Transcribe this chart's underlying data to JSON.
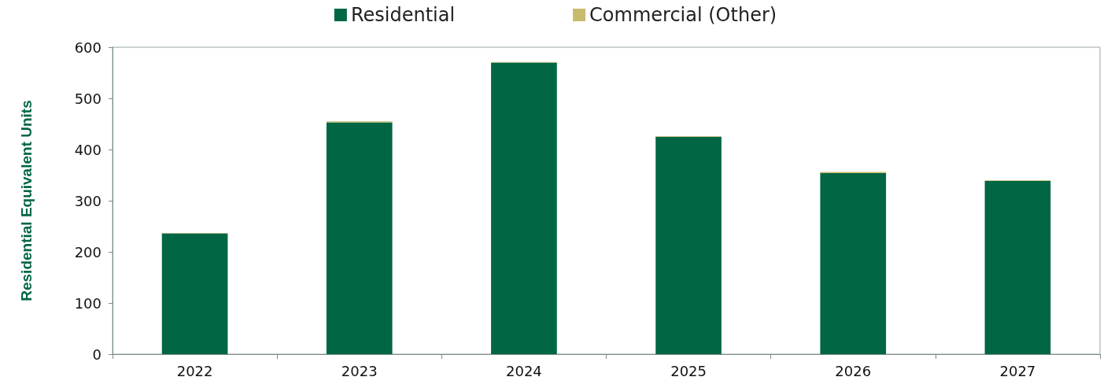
{
  "chart_data": {
    "type": "bar",
    "stacked": true,
    "ylabel": "Residential Equivalent Units",
    "categories": [
      "2022",
      "2023",
      "2024",
      "2025",
      "2026",
      "2027"
    ],
    "series": [
      {
        "name": "Residential",
        "color": "#006644",
        "values": [
          236,
          453,
          570,
          425,
          354,
          339
        ]
      },
      {
        "name": "Commercial (Other)",
        "color": "#c8bb6e",
        "values": [
          1,
          2,
          1,
          1,
          2,
          1
        ]
      }
    ],
    "ylim": [
      0,
      600
    ],
    "yticks": [
      0,
      100,
      200,
      300,
      400,
      500,
      600
    ],
    "grid": false,
    "legend": "top"
  }
}
